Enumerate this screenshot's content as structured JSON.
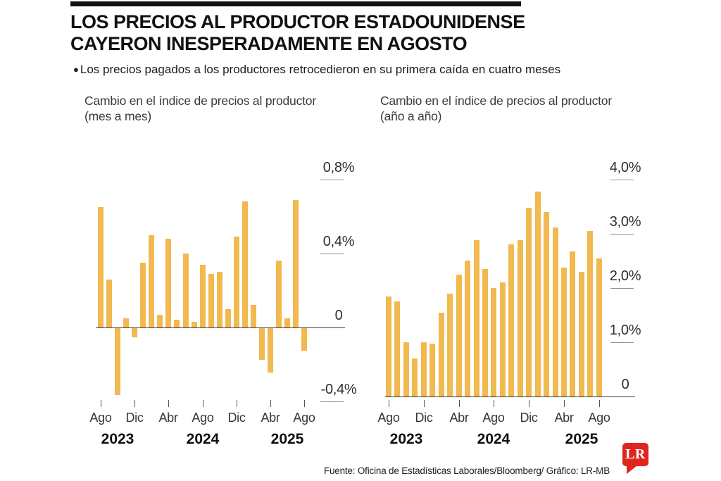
{
  "header": {
    "title_line1": "LOS PRECIOS AL PRODUCTOR ESTADOUNIDENSE",
    "title_line2": "CAYERON INESPERADAMENTE EN AGOSTO",
    "bullet_marker": "●",
    "bullet_text": "Los precios pagados a los productores retrocedieron en su primera caída en cuatro meses"
  },
  "chart_data": [
    {
      "type": "bar",
      "title": "Cambio en el índice de precios al productor",
      "subtitle": "(mes a mes)",
      "categories": [
        "Ago 2023",
        "Sep 2023",
        "Oct 2023",
        "Nov 2023",
        "Dic 2023",
        "Ene 2024",
        "Feb 2024",
        "Mar 2024",
        "Abr 2024",
        "May 2024",
        "Jun 2024",
        "Jul 2024",
        "Ago 2024",
        "Sep 2024",
        "Oct 2024",
        "Nov 2024",
        "Dic 2024",
        "Ene 2025",
        "Feb 2025",
        "Mar 2025",
        "Abr 2025",
        "May 2025",
        "Jun 2025",
        "Jul 2025",
        "Ago 2025"
      ],
      "values": [
        0.65,
        0.26,
        -0.36,
        0.05,
        -0.05,
        0.35,
        0.5,
        0.07,
        0.48,
        0.04,
        0.4,
        0.03,
        0.34,
        0.29,
        0.3,
        0.1,
        0.49,
        0.68,
        0.12,
        -0.17,
        -0.24,
        0.36,
        0.05,
        0.69,
        -0.12
      ],
      "unit": "%",
      "ylim": [
        -0.55,
        0.85
      ],
      "ytick_values": [
        0.8,
        0.4,
        0,
        -0.4
      ],
      "ytick_labels": [
        "0,8%",
        "0,4%",
        "0",
        "-0,4%"
      ],
      "xtick_indices": [
        0,
        4,
        8,
        12,
        16,
        20,
        24
      ],
      "xtick_labels": [
        "Ago",
        "Dic",
        "Abr",
        "Ago",
        "Dic",
        "Abr",
        "Ago"
      ],
      "year_labels": [
        "2023",
        "2024",
        "2025"
      ],
      "bar_color": "#F1B94F",
      "grid": "short right-side tick segments, long zero baseline",
      "legend": "none"
    },
    {
      "type": "bar",
      "title": "Cambio en el índice de precios al productor",
      "subtitle": "(año a año)",
      "categories": [
        "Ago 2023",
        "Sep 2023",
        "Oct 2023",
        "Nov 2023",
        "Dic 2023",
        "Ene 2024",
        "Feb 2024",
        "Mar 2024",
        "Abr 2024",
        "May 2024",
        "Jun 2024",
        "Jul 2024",
        "Ago 2024",
        "Sep 2024",
        "Oct 2024",
        "Nov 2024",
        "Dic 2024",
        "Ene 2025",
        "Feb 2025",
        "Mar 2025",
        "Abr 2025",
        "May 2025",
        "Jun 2025",
        "Jul 2025",
        "Ago 2025"
      ],
      "values": [
        1.85,
        1.75,
        1.0,
        0.7,
        1.0,
        0.97,
        1.55,
        1.9,
        2.25,
        2.5,
        2.88,
        2.35,
        2.0,
        2.1,
        2.8,
        2.88,
        3.48,
        3.78,
        3.4,
        3.12,
        2.38,
        2.67,
        2.3,
        3.05,
        2.55
      ],
      "unit": "%",
      "ylim": [
        0,
        4.2
      ],
      "ytick_values": [
        4,
        3,
        2,
        1,
        0
      ],
      "ytick_labels": [
        "4,0%",
        "3,0%",
        "2,0%",
        "1,0%",
        "0"
      ],
      "xtick_indices": [
        0,
        4,
        8,
        12,
        16,
        20,
        24
      ],
      "xtick_labels": [
        "Ago",
        "Dic",
        "Abr",
        "Ago",
        "Dic",
        "Abr",
        "Ago"
      ],
      "year_labels": [
        "2023",
        "2024",
        "2025"
      ],
      "bar_color": "#F1B94F",
      "grid": "short right-side tick segments, long zero baseline",
      "legend": "none"
    }
  ],
  "footer": {
    "source": "Fuente: Oficina de Estadísticas Laborales/Bloomberg/ Gráfico: LR-MB",
    "logo_text": "LR",
    "logo_color": "#E0251F"
  }
}
